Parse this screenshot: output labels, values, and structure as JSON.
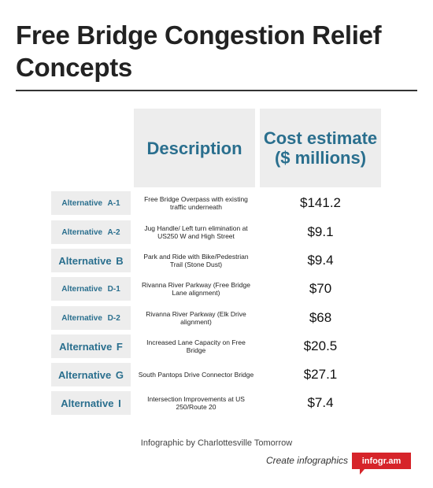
{
  "title": "Free Bridge Congestion Relief Concepts",
  "headers": {
    "description": "Description",
    "cost": "Cost estimate\n($ millions)"
  },
  "rows": [
    {
      "alternative": "Alternative A-1",
      "size": "small",
      "description": "Free Bridge Overpass with existing traffic underneath",
      "cost": "$141.2"
    },
    {
      "alternative": "Alternative A-2",
      "size": "small",
      "description": "Jug Handle/ Left turn elimination at US250 W and High Street",
      "cost": "$9.1"
    },
    {
      "alternative": "Alternative B",
      "size": "big",
      "description": "Park and Ride with Bike/Pedestrian Trail (Stone Dust)",
      "cost": "$9.4"
    },
    {
      "alternative": "Alternative D-1",
      "size": "small",
      "description": "Rivanna River Parkway (Free Bridge Lane alignment)",
      "cost": "$70"
    },
    {
      "alternative": "Alternative D-2",
      "size": "small",
      "description": "Rivanna River Parkway (Elk Drive alignment)",
      "cost": "$68"
    },
    {
      "alternative": "Alternative F",
      "size": "big",
      "description": "Increased Lane Capacity on Free Bridge",
      "cost": "$20.5"
    },
    {
      "alternative": "Alternative G",
      "size": "big",
      "description": "South Pantops Drive Connector Bridge",
      "cost": "$27.1"
    },
    {
      "alternative": "Alternative I",
      "size": "big",
      "description": "Intersection Improvements at US 250/Route 20",
      "cost": "$7.4"
    }
  ],
  "footer": {
    "credit": "Infographic by Charlottesville Tomorrow",
    "create_label": "Create infographics",
    "badge_label": "infogr.am"
  },
  "colors": {
    "accent": "#2a6f8e",
    "cell_background": "#ededed",
    "badge": "#d6242a"
  }
}
